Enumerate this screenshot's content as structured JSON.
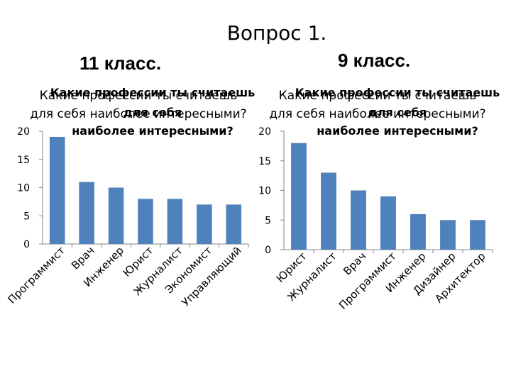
{
  "slide": {
    "title": "Вопрос 1.",
    "label_11": "11 класс.",
    "label_9": "9 класс."
  },
  "chart_data": [
    {
      "type": "bar",
      "title_overlay_a": "Какие профессии ты считаешь для себя наиболее интересными?",
      "title_overlay_b": "Какие профессии ты считаешь для себя наиболее интересными?",
      "categories": [
        "Программист",
        "Врач",
        "Инженер",
        "Юрист",
        "Журналист",
        "Экономист",
        "Управляющий"
      ],
      "values": [
        19,
        11,
        10,
        8,
        8,
        7,
        7
      ],
      "yticks": [
        0,
        5,
        10,
        15,
        20
      ],
      "ylim": [
        0,
        20
      ],
      "bar_color": "#4f81bd"
    },
    {
      "type": "bar",
      "title_overlay_a": "Какие профессии ты считаешь для себя наиболее интересными?",
      "title_overlay_b": "Какие профессии ты считаешь для себя наиболее интересными?",
      "categories": [
        "Юрист",
        "Журналист",
        "Врач",
        "Программист",
        "Инженер",
        "Дизайнер",
        "Архитектор"
      ],
      "values": [
        18,
        13,
        10,
        9,
        6,
        5,
        5
      ],
      "yticks": [
        0,
        5,
        10,
        15,
        20
      ],
      "ylim": [
        0,
        20
      ],
      "bar_color": "#4f81bd"
    }
  ]
}
